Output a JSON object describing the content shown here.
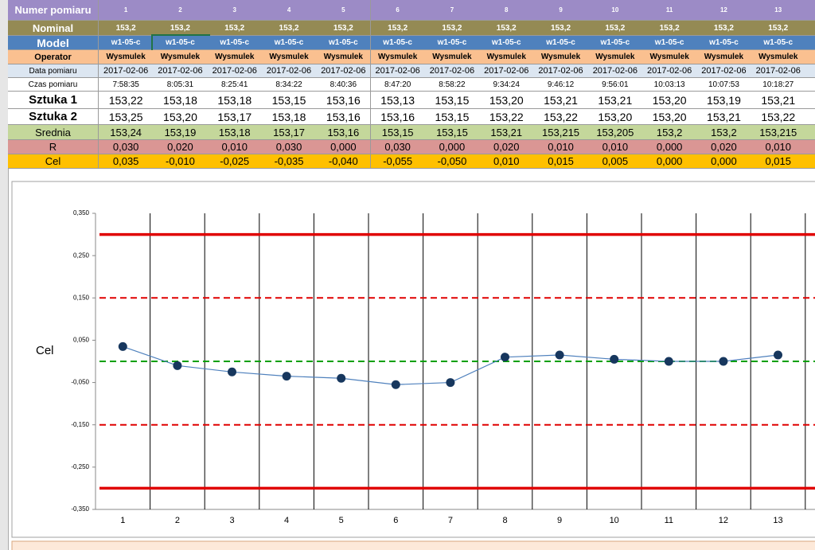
{
  "table": {
    "rows": [
      {
        "label": "Numer pomiaru",
        "cells": [
          "1",
          "2",
          "3",
          "4",
          "5",
          "6",
          "7",
          "8",
          "9",
          "10",
          "11",
          "12",
          "13"
        ]
      },
      {
        "label": "Nominal",
        "cells": [
          "153,2",
          "153,2",
          "153,2",
          "153,2",
          "153,2",
          "153,2",
          "153,2",
          "153,2",
          "153,2",
          "153,2",
          "153,2",
          "153,2",
          "153,2"
        ]
      },
      {
        "label": "Model",
        "cells": [
          "w1-05-c",
          "w1-05-c",
          "w1-05-c",
          "w1-05-c",
          "w1-05-c",
          "w1-05-c",
          "w1-05-c",
          "w1-05-c",
          "w1-05-c",
          "w1-05-c",
          "w1-05-c",
          "w1-05-c",
          "w1-05-c"
        ]
      },
      {
        "label": "Operator",
        "cells": [
          "Wysmulek",
          "Wysmulek",
          "Wysmulek",
          "Wysmulek",
          "Wysmulek",
          "Wysmulek",
          "Wysmulek",
          "Wysmulek",
          "Wysmulek",
          "Wysmulek",
          "Wysmulek",
          "Wysmulek",
          "Wysmulek"
        ]
      },
      {
        "label": "Data pomiaru",
        "cells": [
          "2017-02-06",
          "2017-02-06",
          "2017-02-06",
          "2017-02-06",
          "2017-02-06",
          "2017-02-06",
          "2017-02-06",
          "2017-02-06",
          "2017-02-06",
          "2017-02-06",
          "2017-02-06",
          "2017-02-06",
          "2017-02-06"
        ]
      },
      {
        "label": "Czas pomiaru",
        "cells": [
          "7:58:35",
          "8:05:31",
          "8:25:41",
          "8:34:22",
          "8:40:36",
          "8:47:20",
          "8:58:22",
          "9:34:24",
          "9:46:12",
          "9:56:01",
          "10:03:13",
          "10:07:53",
          "10:18:27"
        ]
      },
      {
        "label": "Sztuka 1",
        "cells": [
          "153,22",
          "153,18",
          "153,18",
          "153,15",
          "153,16",
          "153,13",
          "153,15",
          "153,20",
          "153,21",
          "153,21",
          "153,20",
          "153,19",
          "153,21"
        ]
      },
      {
        "label": "Sztuka 2",
        "cells": [
          "153,25",
          "153,20",
          "153,17",
          "153,18",
          "153,16",
          "153,16",
          "153,15",
          "153,22",
          "153,22",
          "153,20",
          "153,20",
          "153,21",
          "153,22"
        ]
      },
      {
        "label": "Srednia",
        "cells": [
          "153,24",
          "153,19",
          "153,18",
          "153,17",
          "153,16",
          "153,15",
          "153,15",
          "153,21",
          "153,215",
          "153,205",
          "153,2",
          "153,2",
          "153,215"
        ]
      },
      {
        "label": "R",
        "cells": [
          "0,030",
          "0,020",
          "0,010",
          "0,030",
          "0,000",
          "0,030",
          "0,000",
          "0,020",
          "0,010",
          "0,010",
          "0,000",
          "0,020",
          "0,010"
        ]
      },
      {
        "label": "Cel",
        "cells": [
          "0,035",
          "-0,010",
          "-0,025",
          "-0,035",
          "-0,040",
          "-0,055",
          "-0,050",
          "0,010",
          "0,015",
          "0,005",
          "0,000",
          "0,000",
          "0,015"
        ]
      }
    ]
  },
  "chart_data": {
    "type": "line",
    "ylabel": "Cel",
    "categories": [
      "1",
      "2",
      "3",
      "4",
      "5",
      "6",
      "7",
      "8",
      "9",
      "10",
      "11",
      "12",
      "13"
    ],
    "values": [
      0.035,
      -0.01,
      -0.025,
      -0.035,
      -0.04,
      -0.055,
      -0.05,
      0.01,
      0.015,
      0.005,
      0,
      0,
      0.015
    ],
    "color": "#4f81bd",
    "marker_color": "#17375e",
    "ylim": [
      -0.35,
      0.35
    ],
    "yticks": [
      {
        "value": 0.35,
        "label": "0,350"
      },
      {
        "value": 0.25,
        "label": "0,250"
      },
      {
        "value": 0.15,
        "label": "0,150"
      },
      {
        "value": 0.05,
        "label": "0,050"
      },
      {
        "value": -0.05,
        "label": "-0,050"
      },
      {
        "value": -0.15,
        "label": "-0,150"
      },
      {
        "value": -0.25,
        "label": "-0,250"
      },
      {
        "value": -0.35,
        "label": "-0,350"
      }
    ],
    "reference_lines": [
      {
        "value": 0.3,
        "color": "#e00000",
        "dashed": false
      },
      {
        "value": -0.3,
        "color": "#e00000",
        "dashed": false
      },
      {
        "value": 0.15,
        "color": "#e00000",
        "dashed": true
      },
      {
        "value": -0.15,
        "color": "#e00000",
        "dashed": true
      },
      {
        "value": 0,
        "color": "#00a000",
        "dashed": true
      }
    ],
    "grid": true
  }
}
